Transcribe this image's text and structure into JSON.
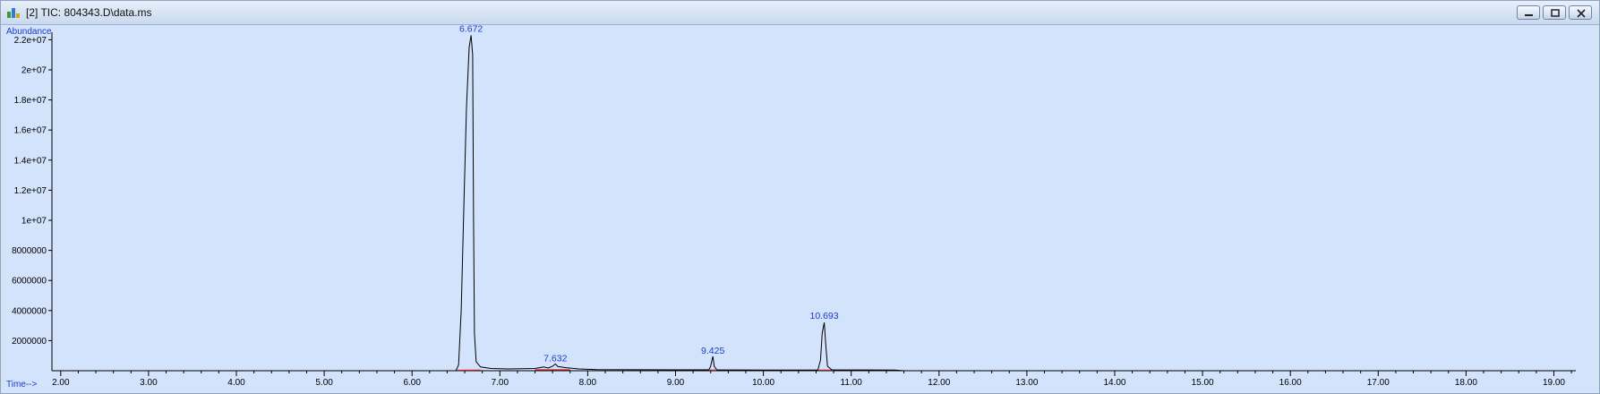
{
  "window": {
    "title": "[2] TIC: 804343.D\\data.ms",
    "icon": "chromatogram-app-icon",
    "buttons": [
      "minimize-icon",
      "restore-icon",
      "close-icon"
    ]
  },
  "colors": {
    "trace": "#000000",
    "baseline": "#d02020",
    "axis_text": "#000000",
    "axis_label": "#1a3cc8",
    "peak_label": "#1a3cc8",
    "plot_bg": "#d3e3fb"
  },
  "chart_data": {
    "type": "line",
    "title": "",
    "xlabel": "Time-->",
    "ylabel": "Abundance",
    "xlim": [
      1.9,
      19.25
    ],
    "ylim": [
      0,
      22500000
    ],
    "grid": false,
    "x_ticks": [
      "2.00",
      "3.00",
      "4.00",
      "5.00",
      "6.00",
      "7.00",
      "8.00",
      "9.00",
      "10.00",
      "11.00",
      "12.00",
      "13.00",
      "14.00",
      "15.00",
      "16.00",
      "17.00",
      "18.00",
      "19.00"
    ],
    "x_tick_values": [
      2,
      3,
      4,
      5,
      6,
      7,
      8,
      9,
      10,
      11,
      12,
      13,
      14,
      15,
      16,
      17,
      18,
      19
    ],
    "y_ticks": [
      "2000000",
      "4000000",
      "6000000",
      "8000000",
      "1e+07",
      "1.2e+07",
      "1.4e+07",
      "1.6e+07",
      "1.8e+07",
      "2e+07",
      "2.2e+07"
    ],
    "y_tick_values": [
      2000000,
      4000000,
      6000000,
      8000000,
      10000000,
      12000000,
      14000000,
      16000000,
      18000000,
      20000000,
      22000000
    ],
    "peaks": [
      {
        "label": "6.672",
        "x": 6.672,
        "y": 22300000
      },
      {
        "label": "7.632",
        "x": 7.632,
        "y": 400000
      },
      {
        "label": "9.425",
        "x": 9.425,
        "y": 900000
      },
      {
        "label": "10.693",
        "x": 10.693,
        "y": 3200000
      }
    ],
    "series": [
      {
        "points": [
          [
            1.95,
            0
          ],
          [
            6.5,
            0
          ],
          [
            6.53,
            400000
          ],
          [
            6.56,
            4000000
          ],
          [
            6.59,
            11000000
          ],
          [
            6.62,
            17500000
          ],
          [
            6.65,
            21500000
          ],
          [
            6.672,
            22300000
          ],
          [
            6.69,
            21000000
          ],
          [
            6.7,
            10000000
          ],
          [
            6.71,
            2500000
          ],
          [
            6.73,
            600000
          ],
          [
            6.78,
            250000
          ],
          [
            6.9,
            150000
          ],
          [
            7.1,
            120000
          ],
          [
            7.4,
            150000
          ],
          [
            7.5,
            250000
          ],
          [
            7.55,
            180000
          ],
          [
            7.6,
            300000
          ],
          [
            7.632,
            450000
          ],
          [
            7.66,
            280000
          ],
          [
            7.75,
            200000
          ],
          [
            7.9,
            120000
          ],
          [
            8.1,
            80000
          ],
          [
            9.0,
            60000
          ],
          [
            9.38,
            60000
          ],
          [
            9.4,
            300000
          ],
          [
            9.425,
            950000
          ],
          [
            9.44,
            300000
          ],
          [
            9.47,
            60000
          ],
          [
            10.0,
            50000
          ],
          [
            10.62,
            50000
          ],
          [
            10.65,
            700000
          ],
          [
            10.67,
            2500000
          ],
          [
            10.693,
            3200000
          ],
          [
            10.71,
            1800000
          ],
          [
            10.73,
            300000
          ],
          [
            10.78,
            60000
          ],
          [
            11.5,
            40000
          ],
          [
            11.6,
            0
          ],
          [
            19.25,
            0
          ]
        ]
      }
    ],
    "integration_baselines": [
      [
        [
          6.52,
          30000
        ],
        [
          6.78,
          40000
        ]
      ],
      [
        [
          7.4,
          60000
        ],
        [
          7.8,
          60000
        ]
      ],
      [
        [
          9.39,
          40000
        ],
        [
          9.46,
          40000
        ]
      ],
      [
        [
          10.63,
          40000
        ],
        [
          10.8,
          40000
        ]
      ]
    ]
  }
}
